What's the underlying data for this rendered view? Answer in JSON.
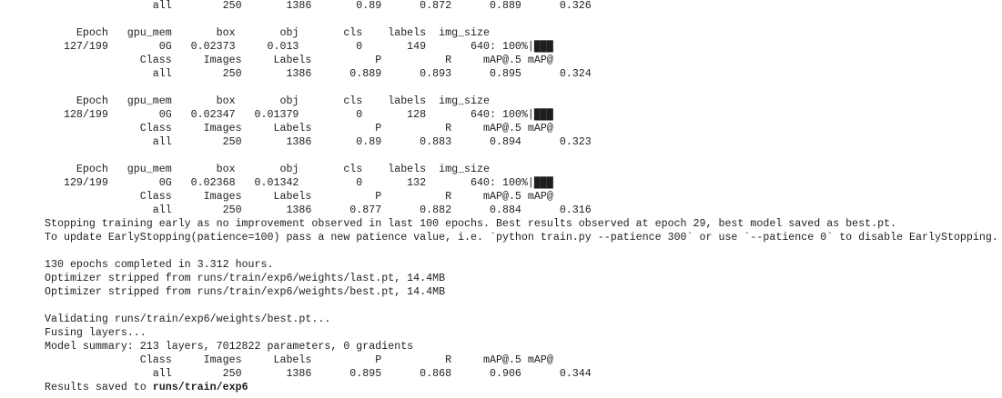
{
  "blocks": [
    {
      "lines": [
        "                 all        250       1386       0.89      0.872      0.889      0.326"
      ]
    },
    {
      "lines": [
        "     Epoch   gpu_mem       box       obj       cls    labels  img_size",
        "   127/199        0G   0.02373     0.013         0       149       640: 100%|███",
        "               Class     Images     Labels          P          R     mAP@.5 mAP@",
        "                 all        250       1386      0.889      0.893      0.895      0.324"
      ]
    },
    {
      "lines": [
        "     Epoch   gpu_mem       box       obj       cls    labels  img_size",
        "   128/199        0G   0.02347   0.01379         0       128       640: 100%|███",
        "               Class     Images     Labels          P          R     mAP@.5 mAP@",
        "                 all        250       1386       0.89      0.883      0.894      0.323"
      ]
    },
    {
      "lines": [
        "     Epoch   gpu_mem       box       obj       cls    labels  img_size",
        "   129/199        0G   0.02368   0.01342         0       132       640: 100%|███",
        "               Class     Images     Labels          P          R     mAP@.5 mAP@",
        "                 all        250       1386      0.877      0.882      0.884      0.316",
        "Stopping training early as no improvement observed in last 100 epochs. Best results observed at epoch 29, best model saved as best.pt.",
        "To update EarlyStopping(patience=100) pass a new patience value, i.e. `python train.py --patience 300` or use `--patience 0` to disable EarlyStopping."
      ]
    },
    {
      "lines": [
        "130 epochs completed in 3.312 hours.",
        "Optimizer stripped from runs/train/exp6/weights/last.pt, 14.4MB",
        "Optimizer stripped from runs/train/exp6/weights/best.pt, 14.4MB"
      ]
    },
    {
      "lines": [
        "Validating runs/train/exp6/weights/best.pt...",
        "Fusing layers... ",
        "Model summary: 213 layers, 7012822 parameters, 0 gradients",
        "               Class     Images     Labels          P          R     mAP@.5 mAP@",
        "                 all        250       1386      0.895      0.868      0.906      0.344"
      ]
    }
  ],
  "final": {
    "text": "Results saved to ",
    "path": "runs/train/exp6"
  }
}
